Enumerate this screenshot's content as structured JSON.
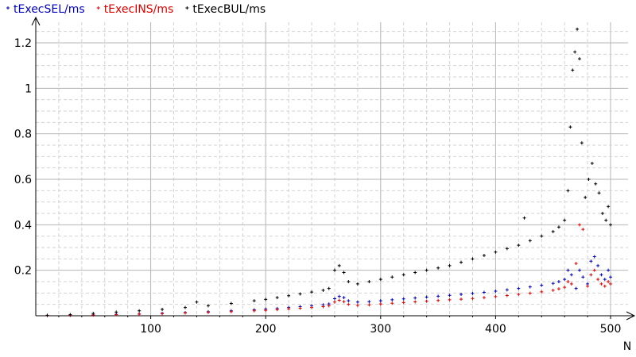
{
  "chart_data": {
    "type": "scatter",
    "title": "",
    "xlabel": "N",
    "ylabel": "",
    "xlim": [
      0,
      500
    ],
    "ylim": [
      0,
      1.25
    ],
    "x_ticks": [
      "100",
      "200",
      "300",
      "400",
      "500"
    ],
    "y_ticks": [
      "0.2",
      "0.4",
      "0.6",
      "0.8",
      "1",
      "1.2"
    ],
    "grid": true,
    "legend_position": "top-left",
    "series": [
      {
        "name": "tExecSEL/ms",
        "color": "#0000c0",
        "points": [
          [
            10,
            0.001
          ],
          [
            30,
            0.002
          ],
          [
            50,
            0.004
          ],
          [
            70,
            0.006
          ],
          [
            90,
            0.008
          ],
          [
            110,
            0.011
          ],
          [
            130,
            0.014
          ],
          [
            150,
            0.018
          ],
          [
            170,
            0.022
          ],
          [
            190,
            0.026
          ],
          [
            200,
            0.029
          ],
          [
            210,
            0.032
          ],
          [
            220,
            0.036
          ],
          [
            230,
            0.04
          ],
          [
            240,
            0.044
          ],
          [
            250,
            0.048
          ],
          [
            255,
            0.052
          ],
          [
            260,
            0.075
          ],
          [
            264,
            0.085
          ],
          [
            268,
            0.08
          ],
          [
            272,
            0.066
          ],
          [
            280,
            0.06
          ],
          [
            290,
            0.062
          ],
          [
            300,
            0.066
          ],
          [
            310,
            0.07
          ],
          [
            320,
            0.074
          ],
          [
            330,
            0.078
          ],
          [
            340,
            0.082
          ],
          [
            350,
            0.086
          ],
          [
            360,
            0.09
          ],
          [
            370,
            0.094
          ],
          [
            380,
            0.098
          ],
          [
            390,
            0.103
          ],
          [
            400,
            0.108
          ],
          [
            410,
            0.114
          ],
          [
            420,
            0.12
          ],
          [
            430,
            0.127
          ],
          [
            440,
            0.134
          ],
          [
            450,
            0.142
          ],
          [
            455,
            0.15
          ],
          [
            460,
            0.16
          ],
          [
            463,
            0.2
          ],
          [
            466,
            0.18
          ],
          [
            470,
            0.12
          ],
          [
            473,
            0.2
          ],
          [
            476,
            0.17
          ],
          [
            480,
            0.14
          ],
          [
            483,
            0.24
          ],
          [
            486,
            0.26
          ],
          [
            489,
            0.22
          ],
          [
            492,
            0.18
          ],
          [
            495,
            0.16
          ],
          [
            498,
            0.2
          ],
          [
            500,
            0.17
          ]
        ]
      },
      {
        "name": "tExecINS/ms",
        "color": "#e00000",
        "points": [
          [
            10,
            0.001
          ],
          [
            30,
            0.002
          ],
          [
            50,
            0.003
          ],
          [
            70,
            0.005
          ],
          [
            90,
            0.007
          ],
          [
            110,
            0.009
          ],
          [
            130,
            0.012
          ],
          [
            150,
            0.015
          ],
          [
            170,
            0.018
          ],
          [
            190,
            0.022
          ],
          [
            200,
            0.024
          ],
          [
            210,
            0.027
          ],
          [
            220,
            0.03
          ],
          [
            230,
            0.033
          ],
          [
            240,
            0.036
          ],
          [
            250,
            0.04
          ],
          [
            255,
            0.044
          ],
          [
            260,
            0.06
          ],
          [
            264,
            0.068
          ],
          [
            268,
            0.062
          ],
          [
            272,
            0.05
          ],
          [
            280,
            0.046
          ],
          [
            290,
            0.048
          ],
          [
            300,
            0.052
          ],
          [
            310,
            0.055
          ],
          [
            320,
            0.058
          ],
          [
            330,
            0.061
          ],
          [
            340,
            0.064
          ],
          [
            350,
            0.067
          ],
          [
            360,
            0.07
          ],
          [
            370,
            0.073
          ],
          [
            380,
            0.076
          ],
          [
            390,
            0.08
          ],
          [
            400,
            0.084
          ],
          [
            410,
            0.089
          ],
          [
            420,
            0.094
          ],
          [
            430,
            0.099
          ],
          [
            440,
            0.105
          ],
          [
            450,
            0.112
          ],
          [
            455,
            0.118
          ],
          [
            460,
            0.125
          ],
          [
            463,
            0.15
          ],
          [
            466,
            0.14
          ],
          [
            470,
            0.23
          ],
          [
            473,
            0.4
          ],
          [
            476,
            0.38
          ],
          [
            480,
            0.13
          ],
          [
            483,
            0.18
          ],
          [
            486,
            0.2
          ],
          [
            489,
            0.16
          ],
          [
            492,
            0.14
          ],
          [
            495,
            0.13
          ],
          [
            498,
            0.15
          ],
          [
            500,
            0.14
          ]
        ]
      },
      {
        "name": "tExecBUL/ms",
        "color": "#000000",
        "points": [
          [
            10,
            0.002
          ],
          [
            30,
            0.005
          ],
          [
            50,
            0.01
          ],
          [
            70,
            0.016
          ],
          [
            90,
            0.022
          ],
          [
            110,
            0.028
          ],
          [
            130,
            0.036
          ],
          [
            140,
            0.06
          ],
          [
            150,
            0.044
          ],
          [
            170,
            0.054
          ],
          [
            190,
            0.066
          ],
          [
            200,
            0.072
          ],
          [
            210,
            0.08
          ],
          [
            220,
            0.088
          ],
          [
            230,
            0.096
          ],
          [
            240,
            0.104
          ],
          [
            250,
            0.112
          ],
          [
            255,
            0.12
          ],
          [
            260,
            0.2
          ],
          [
            264,
            0.22
          ],
          [
            268,
            0.19
          ],
          [
            272,
            0.15
          ],
          [
            280,
            0.14
          ],
          [
            290,
            0.15
          ],
          [
            300,
            0.16
          ],
          [
            310,
            0.17
          ],
          [
            320,
            0.18
          ],
          [
            330,
            0.19
          ],
          [
            340,
            0.2
          ],
          [
            350,
            0.21
          ],
          [
            360,
            0.22
          ],
          [
            370,
            0.235
          ],
          [
            380,
            0.25
          ],
          [
            390,
            0.265
          ],
          [
            400,
            0.28
          ],
          [
            410,
            0.295
          ],
          [
            420,
            0.31
          ],
          [
            425,
            0.43
          ],
          [
            430,
            0.33
          ],
          [
            440,
            0.35
          ],
          [
            450,
            0.37
          ],
          [
            455,
            0.39
          ],
          [
            460,
            0.42
          ],
          [
            463,
            0.55
          ],
          [
            465,
            0.83
          ],
          [
            467,
            1.08
          ],
          [
            469,
            1.16
          ],
          [
            471,
            1.26
          ],
          [
            473,
            1.13
          ],
          [
            475,
            0.76
          ],
          [
            478,
            0.52
          ],
          [
            481,
            0.6
          ],
          [
            484,
            0.67
          ],
          [
            487,
            0.58
          ],
          [
            490,
            0.54
          ],
          [
            493,
            0.45
          ],
          [
            496,
            0.42
          ],
          [
            498,
            0.48
          ],
          [
            500,
            0.4
          ]
        ]
      }
    ]
  }
}
